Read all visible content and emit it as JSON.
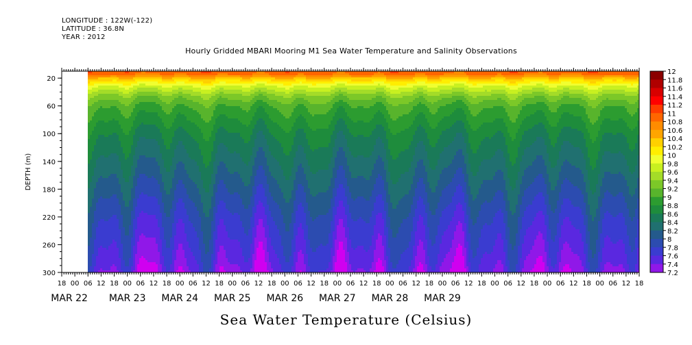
{
  "header": {
    "longitude": "LONGITUDE : 122W(-122)",
    "latitude": "LATITUDE : 36.8N",
    "year": "YEAR : 2012"
  },
  "chart_data": {
    "type": "heatmap",
    "title": "Hourly Gridded MBARI Mooring M1 Sea Water Temperature and Salinity Observations",
    "xlabel": "",
    "ylabel": "DEPTH (m)",
    "bottom_title": "Sea Water Temperature (Celsius)",
    "y_ticks": [
      20,
      60,
      100,
      140,
      180,
      220,
      260,
      300
    ],
    "ylim": [
      300,
      10
    ],
    "x_hour_ticks": [
      "18",
      "00",
      "06",
      "12",
      "18",
      "00",
      "06",
      "12",
      "18",
      "00",
      "06",
      "12",
      "18",
      "00",
      "06",
      "12",
      "18",
      "00",
      "06",
      "12",
      "18",
      "00",
      "06",
      "12",
      "18",
      "00",
      "06",
      "12",
      "18",
      "00",
      "06",
      "12",
      "18",
      "00",
      "06",
      "12",
      "18",
      "00",
      "06",
      "12",
      "18",
      "00",
      "06",
      "12",
      "18"
    ],
    "x_dates": [
      "MAR 22",
      "MAR 23",
      "MAR 24",
      "MAR 25",
      "MAR 26",
      "MAR 27",
      "MAR 28",
      "MAR 29"
    ],
    "colorbar": {
      "labels": [
        "12",
        "11.8",
        "11.6",
        "11.4",
        "11.2",
        "11",
        "10.8",
        "10.6",
        "10.4",
        "10.2",
        "10",
        "9.8",
        "9.6",
        "9.4",
        "9.2",
        "9",
        "8.8",
        "8.6",
        "8.4",
        "8.2",
        "8",
        "7.8",
        "7.6",
        "7.4",
        "7.2"
      ],
      "colors": [
        "#8b0000",
        "#b00000",
        "#d80000",
        "#ff0000",
        "#ff3c00",
        "#ff6600",
        "#ff8c00",
        "#ffa500",
        "#ffd000",
        "#ffee00",
        "#f0ff30",
        "#c8f020",
        "#a4dc28",
        "#7cc828",
        "#58b42c",
        "#2c9c30",
        "#1e8c3c",
        "#1a7a58",
        "#207070",
        "#245a8c",
        "#2c4cb0",
        "#3a3cd0",
        "#5a28e0",
        "#9018e8",
        "#d000f0"
      ]
    },
    "depth_profile": [
      {
        "depth": 12,
        "temp": 11.1
      },
      {
        "depth": 20,
        "temp": 10.5
      },
      {
        "depth": 30,
        "temp": 10.0
      },
      {
        "depth": 45,
        "temp": 9.5
      },
      {
        "depth": 60,
        "temp": 9.2
      },
      {
        "depth": 80,
        "temp": 9.0
      },
      {
        "depth": 100,
        "temp": 8.8
      },
      {
        "depth": 130,
        "temp": 8.6
      },
      {
        "depth": 160,
        "temp": 8.4
      },
      {
        "depth": 190,
        "temp": 8.2
      },
      {
        "depth": 220,
        "temp": 8.0
      },
      {
        "depth": 250,
        "temp": 7.85
      },
      {
        "depth": 280,
        "temp": 7.7
      },
      {
        "depth": 300,
        "temp": 7.55
      }
    ]
  }
}
